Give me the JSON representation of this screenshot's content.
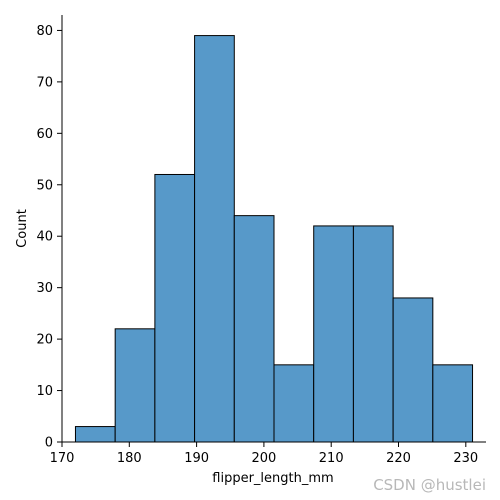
{
  "chart_data": {
    "type": "bar",
    "kind": "histogram",
    "xlabel": "flipper_length_mm",
    "ylabel": "Count",
    "xlim": [
      170,
      233
    ],
    "ylim": [
      0,
      83
    ],
    "xticks": [
      170,
      180,
      190,
      200,
      210,
      220,
      230
    ],
    "yticks": [
      0,
      10,
      20,
      30,
      40,
      50,
      60,
      70,
      80
    ],
    "bins": [
      {
        "x0": 172.0,
        "x1": 177.9,
        "count": 3
      },
      {
        "x0": 177.9,
        "x1": 183.8,
        "count": 22
      },
      {
        "x0": 183.8,
        "x1": 189.7,
        "count": 52
      },
      {
        "x0": 189.7,
        "x1": 195.6,
        "count": 79
      },
      {
        "x0": 195.6,
        "x1": 201.5,
        "count": 44
      },
      {
        "x0": 201.5,
        "x1": 207.4,
        "count": 15
      },
      {
        "x0": 207.4,
        "x1": 213.3,
        "count": 42
      },
      {
        "x0": 213.3,
        "x1": 219.2,
        "count": 42
      },
      {
        "x0": 219.2,
        "x1": 225.1,
        "count": 28
      },
      {
        "x0": 225.1,
        "x1": 231.0,
        "count": 15
      }
    ],
    "bar_color": "#5799c9",
    "edge_color": "#000000",
    "grid": false,
    "spines": "left-bottom"
  },
  "watermark": "CSDN @hustlei"
}
